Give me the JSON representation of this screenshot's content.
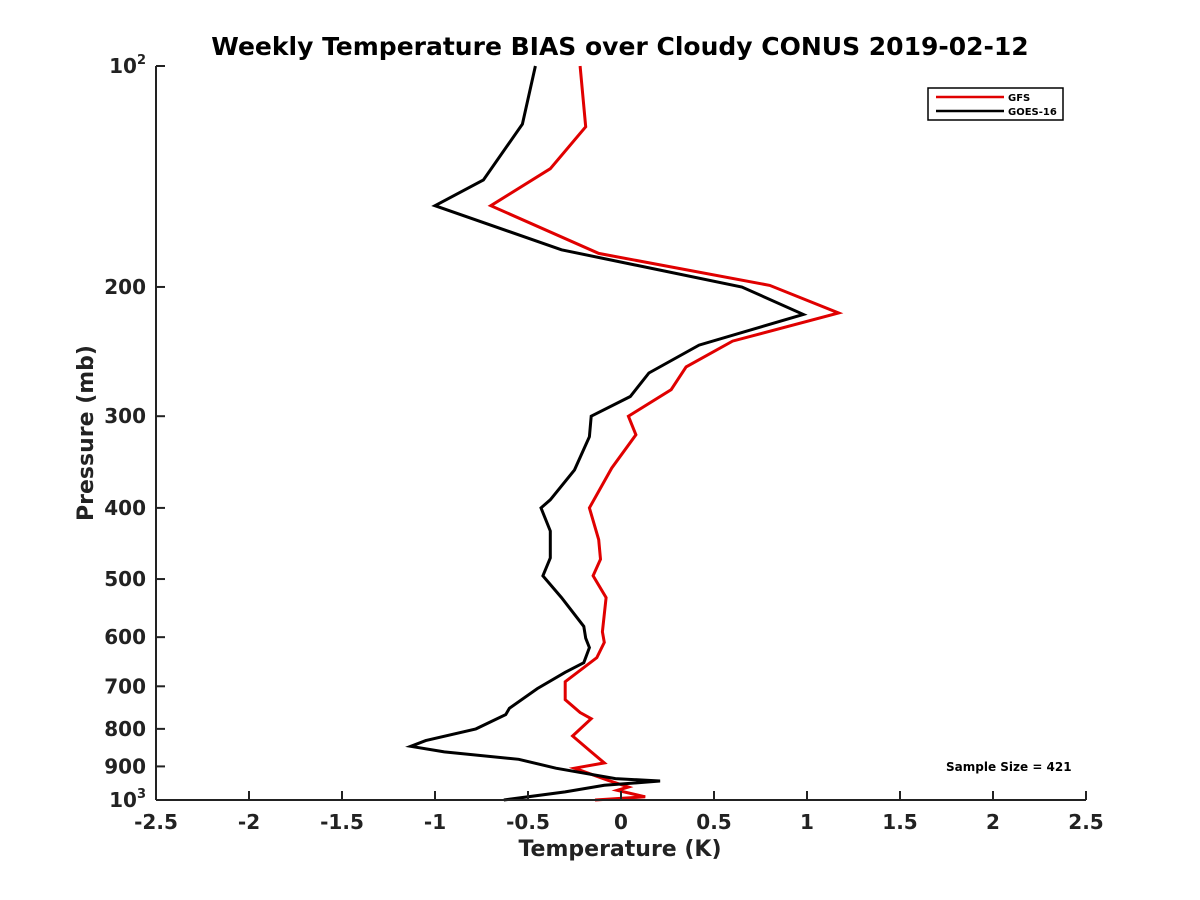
{
  "chart_data": {
    "type": "line",
    "title": "Weekly Temperature BIAS over Cloudy CONUS 2019-02-12",
    "xlabel": "Temperature (K)",
    "ylabel": "Pressure (mb)",
    "xlim": [
      -2.5,
      2.5
    ],
    "ylim": [
      100,
      1000
    ],
    "yscale": "log",
    "y_reversed": true,
    "grid": false,
    "x_ticks": [
      -2.5,
      -2,
      -1.5,
      -1,
      -0.5,
      0,
      0.5,
      1,
      1.5,
      2,
      2.5
    ],
    "x_tick_labels": [
      "-2.5",
      "-2",
      "-1.5",
      "-1",
      "-0.5",
      "0",
      "0.5",
      "1",
      "1.5",
      "2",
      "2.5"
    ],
    "y_ticks": [
      100,
      200,
      300,
      400,
      500,
      600,
      700,
      800,
      900,
      1000
    ],
    "y_tick_labels": [
      {
        "base": "10",
        "sup": "2"
      },
      {
        "base": "200"
      },
      {
        "base": "300"
      },
      {
        "base": "400"
      },
      {
        "base": "500"
      },
      {
        "base": "600"
      },
      {
        "base": "700"
      },
      {
        "base": "800"
      },
      {
        "base": "900"
      },
      {
        "base": "10",
        "sup": "3"
      }
    ],
    "legend_position": "top-right",
    "annotation": "Sample Size = 421",
    "series": [
      {
        "name": "GFS",
        "color": "#e00000",
        "points": [
          [
            -0.22,
            100
          ],
          [
            -0.19,
            121
          ],
          [
            -0.38,
            138
          ],
          [
            -0.7,
            155
          ],
          [
            -0.12,
            180
          ],
          [
            0.8,
            199
          ],
          [
            1.17,
            217
          ],
          [
            0.6,
            237
          ],
          [
            0.35,
            257
          ],
          [
            0.27,
            276
          ],
          [
            0.04,
            300
          ],
          [
            0.08,
            318
          ],
          [
            -0.05,
            353
          ],
          [
            -0.17,
            400
          ],
          [
            -0.12,
            442
          ],
          [
            -0.11,
            470
          ],
          [
            -0.15,
            495
          ],
          [
            -0.08,
            530
          ],
          [
            -0.1,
            590
          ],
          [
            -0.09,
            610
          ],
          [
            -0.13,
            640
          ],
          [
            -0.3,
            690
          ],
          [
            -0.3,
            730
          ],
          [
            -0.22,
            760
          ],
          [
            -0.16,
            775
          ],
          [
            -0.26,
            818
          ],
          [
            -0.16,
            860
          ],
          [
            -0.09,
            890
          ],
          [
            -0.25,
            905
          ],
          [
            -0.07,
            940
          ],
          [
            0.04,
            960
          ],
          [
            -0.02,
            970
          ],
          [
            0.13,
            990
          ],
          [
            -0.14,
            1000
          ]
        ]
      },
      {
        "name": "GOES-16",
        "color": "#000000",
        "points": [
          [
            -0.46,
            100
          ],
          [
            -0.53,
            120
          ],
          [
            -0.74,
            143
          ],
          [
            -1.0,
            155
          ],
          [
            -0.32,
            178
          ],
          [
            0.65,
            200
          ],
          [
            0.98,
            218
          ],
          [
            0.42,
            240
          ],
          [
            0.15,
            262
          ],
          [
            0.05,
            282
          ],
          [
            -0.16,
            300
          ],
          [
            -0.17,
            320
          ],
          [
            -0.25,
            355
          ],
          [
            -0.38,
            390
          ],
          [
            -0.43,
            400
          ],
          [
            -0.38,
            430
          ],
          [
            -0.38,
            468
          ],
          [
            -0.42,
            495
          ],
          [
            -0.32,
            530
          ],
          [
            -0.2,
            580
          ],
          [
            -0.19,
            602
          ],
          [
            -0.17,
            620
          ],
          [
            -0.2,
            650
          ],
          [
            -0.3,
            670
          ],
          [
            -0.45,
            705
          ],
          [
            -0.6,
            750
          ],
          [
            -0.62,
            765
          ],
          [
            -0.78,
            800
          ],
          [
            -1.05,
            830
          ],
          [
            -1.13,
            845
          ],
          [
            -0.95,
            860
          ],
          [
            -0.55,
            880
          ],
          [
            -0.35,
            905
          ],
          [
            -0.03,
            935
          ],
          [
            0.21,
            942
          ],
          [
            -0.09,
            955
          ],
          [
            -0.3,
            975
          ],
          [
            -0.63,
            1000
          ]
        ]
      }
    ]
  }
}
